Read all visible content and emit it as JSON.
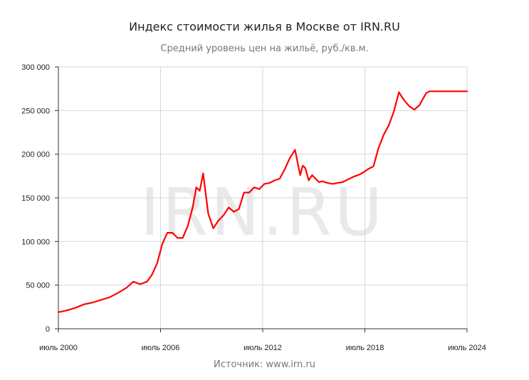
{
  "chart_data": {
    "type": "line",
    "title": "Индекс стоимости жилья в Москве от IRN.RU",
    "subtitle": "Средний уровень цен на жильё, руб./кв.м.",
    "source": "Источник: www.irn.ru",
    "watermark": "IRN.RU",
    "xlabel": "",
    "ylabel": "",
    "x_ticks": [
      "июль 2000",
      "июль 2006",
      "июль 2012",
      "июль 2018",
      "июль 2024"
    ],
    "y_ticks": [
      "0",
      "50 000",
      "100 000",
      "150 000",
      "200 000",
      "250 000",
      "300 000"
    ],
    "ylim": [
      0,
      300000
    ],
    "xlim": [
      2000.5,
      2024.5
    ],
    "grid": true,
    "line_color": "#ff0000",
    "series": [
      {
        "x": [
          2000.5,
          2001.0,
          2001.5,
          2002.0,
          2002.5,
          2003.0,
          2003.5,
          2004.0,
          2004.5,
          2004.9,
          2005.3,
          2005.7,
          2006.0,
          2006.3,
          2006.6,
          2006.9,
          2007.2,
          2007.5,
          2007.8,
          2008.1,
          2008.4,
          2008.6,
          2008.8,
          2009.0,
          2009.3,
          2009.6,
          2009.9,
          2010.2,
          2010.5,
          2010.8,
          2011.1,
          2011.4,
          2011.7,
          2012.0,
          2012.3,
          2012.6,
          2012.9,
          2013.2,
          2013.5,
          2013.8,
          2014.1,
          2014.4,
          2014.7,
          2014.85,
          2015.0,
          2015.2,
          2015.4,
          2015.6,
          2015.8,
          2016.0,
          2016.3,
          2016.6,
          2016.9,
          2017.2,
          2017.5,
          2017.8,
          2018.1,
          2018.4,
          2018.7,
          2019.0,
          2019.3,
          2019.6,
          2019.9,
          2020.2,
          2020.5,
          2020.8,
          2021.1,
          2021.4,
          2021.7,
          2021.9,
          2022.1,
          2022.3,
          2022.5,
          2022.8,
          2023.1,
          2023.4,
          2023.7,
          2024.0,
          2024.5
        ],
        "values": [
          19000,
          21000,
          24000,
          28000,
          30000,
          33000,
          36000,
          41000,
          47000,
          54000,
          51000,
          54000,
          62000,
          75000,
          97000,
          110000,
          110000,
          104000,
          104000,
          118000,
          140000,
          162000,
          158000,
          178000,
          132000,
          115000,
          124000,
          130000,
          139000,
          134000,
          137000,
          156000,
          156000,
          162000,
          160000,
          166000,
          167000,
          170000,
          172000,
          183000,
          196000,
          205000,
          176000,
          187000,
          184000,
          170000,
          176000,
          172000,
          168000,
          169000,
          167000,
          166000,
          167000,
          168000,
          171000,
          174000,
          176000,
          179000,
          183000,
          186000,
          207000,
          222000,
          233000,
          249000,
          271000,
          262000,
          255000,
          251000,
          256000,
          263000,
          270000,
          272000,
          272000,
          272000,
          272000,
          272000,
          272000,
          272000,
          272000
        ]
      }
    ]
  }
}
